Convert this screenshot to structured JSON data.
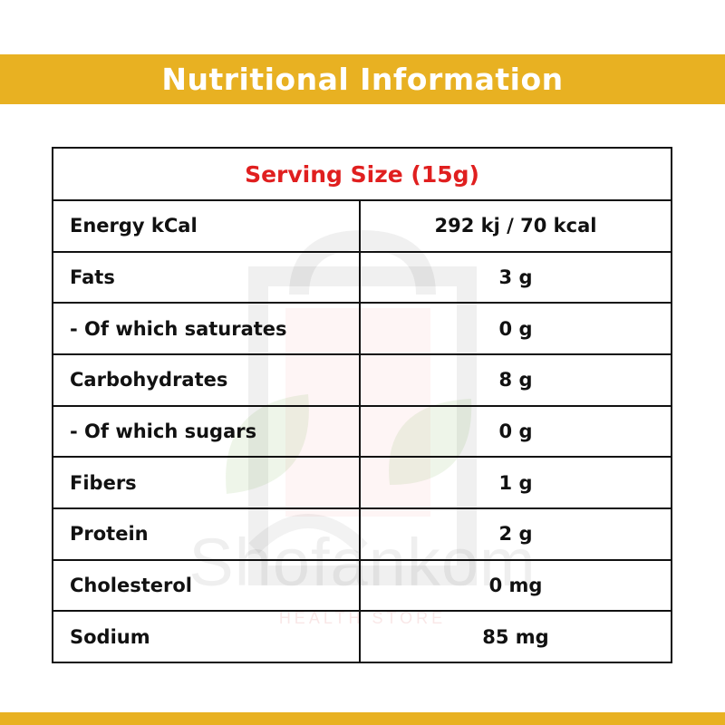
{
  "header": {
    "title": "Nutritional Information"
  },
  "table": {
    "serving_size": "Serving Size (15g)",
    "rows": [
      {
        "label": "Energy kCal",
        "value": "292 kj / 70 kcal"
      },
      {
        "label": "Fats",
        "value": "3 g"
      },
      {
        "label": "- Of which saturates",
        "value": "0 g"
      },
      {
        "label": "Carbohydrates",
        "value": "8 g"
      },
      {
        "label": "- Of which sugars",
        "value": "0 g"
      },
      {
        "label": "Fibers",
        "value": "1 g"
      },
      {
        "label": "Protein",
        "value": "2 g"
      },
      {
        "label": "Cholesterol",
        "value": "0 mg"
      },
      {
        "label": "Sodium",
        "value": "85 mg"
      }
    ]
  },
  "watermark": {
    "brand": "Shofankom",
    "tagline": "HEALTH STORE"
  },
  "colors": {
    "band": "#e8b122",
    "serving_text": "#e01f1f",
    "border": "#111111"
  }
}
